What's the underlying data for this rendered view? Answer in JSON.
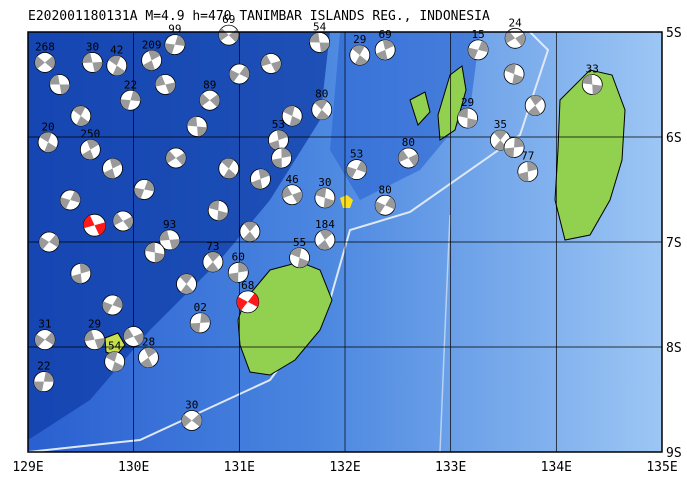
{
  "map": {
    "title": "E202001180131A  M=4.9  h=470  TANIMBAR ISLANDS REG., INDONESIA",
    "xlim": [
      129,
      135
    ],
    "ylim": [
      -9,
      -5
    ],
    "xticks": [
      {
        "value": 129,
        "label": "129E"
      },
      {
        "value": 130,
        "label": "130E"
      },
      {
        "value": 131,
        "label": "131E"
      },
      {
        "value": 132,
        "label": "132E"
      },
      {
        "value": 133,
        "label": "133E"
      },
      {
        "value": 134,
        "label": "134E"
      },
      {
        "value": 135,
        "label": "135E"
      }
    ],
    "yticks": [
      {
        "value": -5,
        "label": "5S"
      },
      {
        "value": -6,
        "label": "6S"
      },
      {
        "value": -7,
        "label": "7S"
      },
      {
        "value": -8,
        "label": "8S"
      },
      {
        "value": -9,
        "label": "9S"
      }
    ],
    "grid": true,
    "ball_color": "#9a9a9a",
    "highlight_color": "#ff1a1a",
    "events": [
      {
        "lon": 129.16,
        "lat": -5.29,
        "label": "268"
      },
      {
        "lon": 129.61,
        "lat": -5.29,
        "label": "30"
      },
      {
        "lon": 129.84,
        "lat": -5.32,
        "label": "42"
      },
      {
        "lon": 130.17,
        "lat": -5.27,
        "label": "209"
      },
      {
        "lon": 130.39,
        "lat": -5.12,
        "label": "99"
      },
      {
        "lon": 130.9,
        "lat": -5.03,
        "label": "69"
      },
      {
        "lon": 131.76,
        "lat": -5.1,
        "label": "54"
      },
      {
        "lon": 132.14,
        "lat": -5.22,
        "label": "29"
      },
      {
        "lon": 132.38,
        "lat": -5.17,
        "label": "69"
      },
      {
        "lon": 133.26,
        "lat": -5.17,
        "label": "15"
      },
      {
        "lon": 133.61,
        "lat": -5.06,
        "label": "24"
      },
      {
        "lon": 134.34,
        "lat": -5.5,
        "label": "33"
      },
      {
        "lon": 131.78,
        "lat": -5.74,
        "label": "80"
      },
      {
        "lon": 131.37,
        "lat": -6.03,
        "label": "53"
      },
      {
        "lon": 132.11,
        "lat": -6.31,
        "label": "53"
      },
      {
        "lon": 132.6,
        "lat": -6.2,
        "label": "80"
      },
      {
        "lon": 133.16,
        "lat": -5.82,
        "label": "29"
      },
      {
        "lon": 133.47,
        "lat": -6.03,
        "label": "35"
      },
      {
        "lon": 133.73,
        "lat": -6.33,
        "label": "77"
      },
      {
        "lon": 132.38,
        "lat": -6.65,
        "label": "80"
      },
      {
        "lon": 131.5,
        "lat": -6.55,
        "label": "46"
      },
      {
        "lon": 131.81,
        "lat": -6.58,
        "label": "30"
      },
      {
        "lon": 130.75,
        "lat": -7.19,
        "label": "73"
      },
      {
        "lon": 130.99,
        "lat": -7.29,
        "label": "60"
      },
      {
        "lon": 131.08,
        "lat": -7.57,
        "label": "68",
        "highlight": true
      },
      {
        "lon": 129.63,
        "lat": -6.84,
        "highlight": true
      },
      {
        "lon": 131.57,
        "lat": -7.15,
        "label": "55"
      },
      {
        "lon": 131.81,
        "lat": -6.98,
        "label": "184"
      },
      {
        "lon": 130.63,
        "lat": -7.77,
        "label": "02"
      },
      {
        "lon": 129.16,
        "lat": -7.93,
        "label": "31"
      },
      {
        "lon": 129.63,
        "lat": -7.93,
        "label": "29"
      },
      {
        "lon": 129.82,
        "lat": -8.14,
        "label": "54"
      },
      {
        "lon": 130.14,
        "lat": -8.1,
        "label": "28"
      },
      {
        "lon": 129.15,
        "lat": -8.33,
        "label": "22"
      },
      {
        "lon": 130.55,
        "lat": -8.7,
        "label": "30"
      },
      {
        "lon": 130.34,
        "lat": -6.98,
        "label": "93"
      },
      {
        "lon": 129.19,
        "lat": -6.05,
        "label": "20"
      },
      {
        "lon": 129.59,
        "lat": -6.12,
        "label": "250"
      },
      {
        "lon": 129.97,
        "lat": -5.65,
        "label": "22"
      },
      {
        "lon": 130.72,
        "lat": -5.65,
        "label": "89"
      },
      {
        "lon": 129.3,
        "lat": -5.5
      },
      {
        "lon": 129.5,
        "lat": -5.8
      },
      {
        "lon": 129.8,
        "lat": -6.3
      },
      {
        "lon": 130.1,
        "lat": -6.5
      },
      {
        "lon": 130.4,
        "lat": -6.2
      },
      {
        "lon": 130.6,
        "lat": -5.9
      },
      {
        "lon": 130.9,
        "lat": -6.3
      },
      {
        "lon": 131.2,
        "lat": -6.4
      },
      {
        "lon": 129.4,
        "lat": -6.6
      },
      {
        "lon": 129.9,
        "lat": -6.8
      },
      {
        "lon": 130.2,
        "lat": -7.1
      },
      {
        "lon": 130.5,
        "lat": -7.4
      },
      {
        "lon": 129.5,
        "lat": -7.3
      },
      {
        "lon": 129.8,
        "lat": -7.6
      },
      {
        "lon": 130.0,
        "lat": -7.9
      },
      {
        "lon": 130.8,
        "lat": -6.7
      },
      {
        "lon": 131.1,
        "lat": -6.9
      },
      {
        "lon": 131.4,
        "lat": -6.2
      },
      {
        "lon": 131.0,
        "lat": -5.4
      },
      {
        "lon": 131.3,
        "lat": -5.3
      },
      {
        "lon": 133.6,
        "lat": -5.4
      },
      {
        "lon": 133.8,
        "lat": -5.7
      },
      {
        "lon": 133.6,
        "lat": -6.1
      },
      {
        "lon": 129.2,
        "lat": -7.0
      },
      {
        "lon": 130.3,
        "lat": -5.5
      },
      {
        "lon": 131.5,
        "lat": -5.8
      }
    ]
  }
}
